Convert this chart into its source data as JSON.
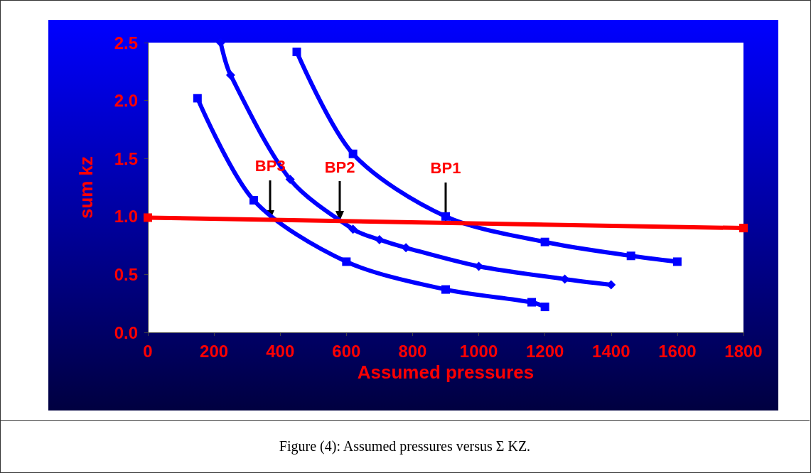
{
  "chart_data": {
    "type": "line",
    "xlabel": "Assumed pressures",
    "ylabel": "sum kz",
    "xlim": [
      0,
      1800
    ],
    "xticks": [
      0,
      200,
      400,
      600,
      800,
      1000,
      1200,
      1400,
      1600,
      1800
    ],
    "ylim": [
      0,
      2.5
    ],
    "yticks": [
      {
        "value": 0,
        "label": "0.0"
      },
      {
        "value": 0.5,
        "label": "0.5"
      },
      {
        "value": 1,
        "label": "1.0"
      },
      {
        "value": 1.5,
        "label": "1.5"
      },
      {
        "value": 2,
        "label": "2.0"
      },
      {
        "value": 2.5,
        "label": "2.5"
      }
    ],
    "grid": false,
    "series": [
      {
        "color": "#0000ff",
        "marker": "square",
        "x": [
          150,
          320,
          600,
          900,
          1160,
          1200
        ],
        "values": [
          2.02,
          1.14,
          0.61,
          0.37,
          0.26,
          0.22
        ]
      },
      {
        "color": "#0000ff",
        "marker": "diamond",
        "x": [
          220,
          250,
          430,
          620,
          700,
          780,
          1000,
          1260,
          1400
        ],
        "values": [
          2.5,
          2.22,
          1.32,
          0.89,
          0.8,
          0.73,
          0.57,
          0.46,
          0.41
        ]
      },
      {
        "color": "#0000ff",
        "marker": "square",
        "x": [
          450,
          620,
          900,
          1200,
          1460,
          1600
        ],
        "values": [
          2.42,
          1.54,
          1.0,
          0.78,
          0.66,
          0.61
        ]
      },
      {
        "color": "#ff0000",
        "marker": "square",
        "x": [
          0,
          1800
        ],
        "values": [
          0.99,
          0.9
        ]
      }
    ],
    "annotations": [
      {
        "text": "BP3",
        "x": 370,
        "y": 0.97
      },
      {
        "text": "BP2",
        "x": 580,
        "y": 0.96
      },
      {
        "text": "BP1",
        "x": 900,
        "y": 0.95
      },
      "Figure (4): Assumed pressures versus Σ KZ."
    ]
  }
}
